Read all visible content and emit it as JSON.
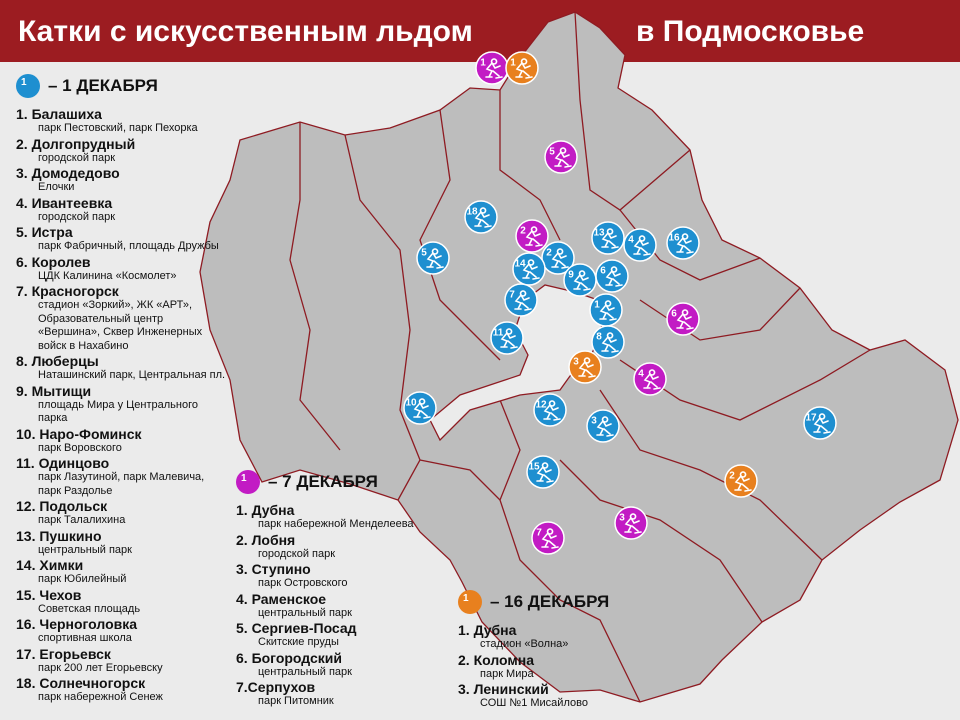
{
  "header": {
    "title_left": "Катки с искусственным льдом",
    "title_right": "в Подмосковье"
  },
  "groups": [
    {
      "badge": "1",
      "heading": "– 1 ДЕКАБРЯ",
      "color": "#1e8fd0",
      "items": [
        {
          "name": "1. Балашиха",
          "place": "парк Пестовский, парк Пехорка"
        },
        {
          "name": "2. Долгопрудный",
          "place": "городской парк"
        },
        {
          "name": "3. Домодедово",
          "place": "Елочки"
        },
        {
          "name": "4. Ивантеевка",
          "place": "городской парк"
        },
        {
          "name": "5. Истра",
          "place": "парк Фабричный, площадь Дружбы"
        },
        {
          "name": "6. Королев",
          "place": "ЦДК Калинина «Космолет»"
        },
        {
          "name": "7. Красногорск",
          "place": "стадион «Зоркий», ЖК «АРТ», Образовательный центр «Вершина», Сквер Инженерных войск в Нахабино"
        },
        {
          "name": "8. Люберцы",
          "place": "Наташинский парк, Центральная пл."
        },
        {
          "name": "9. Мытищи",
          "place": "площадь Мира у Центрального парка"
        },
        {
          "name": "10. Наро-Фоминск",
          "place": "парк Воровского"
        },
        {
          "name": "11. Одинцово",
          "place": "парк Лазутиной, парк Малевича, парк Раздолье"
        },
        {
          "name": "12. Подольск",
          "place": "парк Талалихина"
        },
        {
          "name": "13. Пушкино",
          "place": "центральный парк"
        },
        {
          "name": "14. Химки",
          "place": "парк Юбилейный"
        },
        {
          "name": "15. Чехов",
          "place": "Советская площадь"
        },
        {
          "name": "16. Черноголовка",
          "place": "спортивная школа"
        },
        {
          "name": "17. Егорьевск",
          "place": "парк 200 лет Егорьевску"
        },
        {
          "name": "18. Солнечногорск",
          "place": "парк набережной Сенеж"
        }
      ],
      "markers": [
        "1",
        "2",
        "3",
        "4",
        "5",
        "6",
        "7",
        "8",
        "9",
        "10",
        "11",
        "12",
        "13",
        "14",
        "15",
        "16",
        "17",
        "18"
      ]
    },
    {
      "badge": "1",
      "heading": "– 7 ДЕКАБРЯ",
      "color": "#c21bc4",
      "items": [
        {
          "name": "1. Дубна",
          "place": "парк набережной Менделеева"
        },
        {
          "name": "2. Лобня",
          "place": "городской парк"
        },
        {
          "name": "3. Ступино",
          "place": "парк Островского"
        },
        {
          "name": "4. Раменское",
          "place": "центральный парк"
        },
        {
          "name": "5. Сергиев-Посад",
          "place": "Скитские пруды"
        },
        {
          "name": "6. Богородский",
          "place": "центральный парк"
        },
        {
          "name": "7.Серпухов",
          "place": "парк Питомник"
        }
      ],
      "markers": [
        "1",
        "2",
        "3",
        "4",
        "5",
        "6",
        "7"
      ]
    },
    {
      "badge": "1",
      "heading": "– 16 ДЕКАБРЯ",
      "color": "#e8801e",
      "items": [
        {
          "name": "1. Дубна",
          "place": "стадион «Волна»"
        },
        {
          "name": "2. Коломна",
          "place": "парк Мира"
        },
        {
          "name": "3. Ленинский",
          "place": "СОШ №1 Мисайлово"
        }
      ],
      "markers": [
        "1",
        "2",
        "3"
      ]
    }
  ]
}
